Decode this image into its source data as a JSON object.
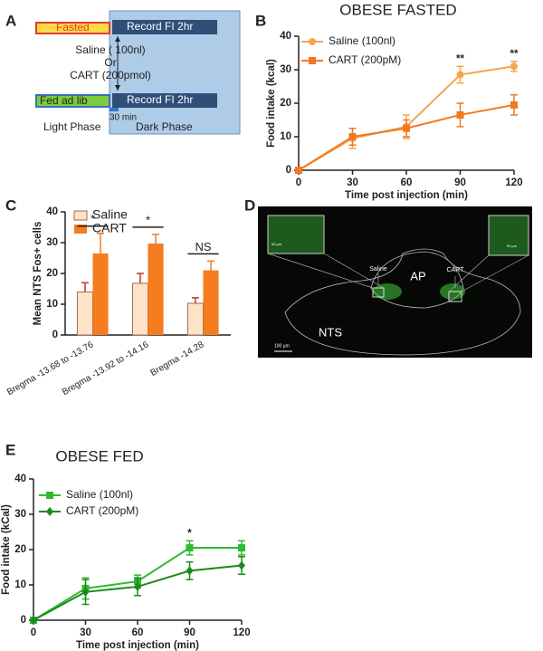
{
  "panel_labels": [
    "A",
    "B",
    "C",
    "D",
    "E"
  ],
  "diagram": {
    "fasted": "Fasted",
    "record_1": "Record FI 2hr",
    "saline": "Saline ( 100nl)",
    "or": "Or",
    "cart": "CART (200pmol)",
    "fed": "Fed ad lib",
    "record_2": "Record FI 2hr",
    "delay": "30 min",
    "light": "Light Phase",
    "dark": "Dark Phase"
  },
  "micrograph": {
    "saline": "Saline",
    "cart": "CART",
    "ap": "AP",
    "nts": "NTS",
    "scale": "100 µm",
    "inset_scale_1": "50 µm",
    "inset_scale_2": "50 µm"
  },
  "chart_data": [
    {
      "type": "line",
      "title": "OBESE FASTED",
      "x_label": "Time post injection (min)",
      "y_label": "Food intake (kcal)",
      "x": [
        0,
        30,
        60,
        90,
        120
      ],
      "xlim": [
        0,
        120
      ],
      "xticks": [
        0,
        30,
        60,
        90,
        120
      ],
      "ylim": [
        0,
        40
      ],
      "yticks": [
        0,
        10,
        20,
        30,
        40
      ],
      "series": [
        {
          "name": "Saline (100nl)",
          "color": "#f5a54e",
          "marker": "circle",
          "values": [
            0,
            9.5,
            13,
            28.5,
            31
          ],
          "errors": [
            0,
            3,
            3.5,
            2.5,
            1.5
          ]
        },
        {
          "name": "CART (200pM)",
          "color": "#f07a22",
          "marker": "square",
          "values": [
            0,
            10,
            12.5,
            16.5,
            19.5
          ],
          "errors": [
            0,
            2.5,
            2.5,
            3.5,
            3
          ]
        }
      ],
      "annotations": [
        {
          "text": "**",
          "x": 90
        },
        {
          "text": "**",
          "x": 120
        }
      ]
    },
    {
      "type": "bar",
      "y_label": "Mean NTS Fos+ cells",
      "categories": [
        "Bregma -13.68 to -13.76",
        "Bregma -13.92 to -14.16",
        "Bregma -14.28"
      ],
      "ylim": [
        0,
        40
      ],
      "yticks": [
        0,
        10,
        20,
        30,
        40
      ],
      "series": [
        {
          "name": "Saline",
          "color": "#fde3c8",
          "values": [
            14,
            16.8,
            10.3
          ],
          "errors": [
            3,
            3.2,
            1.8
          ]
        },
        {
          "name": "CART",
          "color": "#f57c1f",
          "values": [
            26.5,
            29.7,
            21
          ],
          "errors": [
            6.5,
            3,
            3
          ]
        }
      ],
      "annotations": [
        {
          "text": "*",
          "category": 0
        },
        {
          "text": "*",
          "category": 1
        },
        {
          "text": "NS",
          "category": 2
        }
      ]
    },
    {
      "type": "line",
      "title": "OBESE FED",
      "x_label": "Time post injection (min)",
      "y_label": "Food intake (kCal)",
      "x": [
        0,
        30,
        60,
        90,
        120
      ],
      "xlim": [
        0,
        120
      ],
      "xticks": [
        0,
        30,
        60,
        90,
        120
      ],
      "ylim": [
        0,
        40
      ],
      "yticks": [
        0,
        10,
        20,
        30,
        40
      ],
      "series": [
        {
          "name": "Saline (100nl)",
          "color": "#2fba2f",
          "marker": "square",
          "values": [
            0,
            9,
            11,
            20.5,
            20.5
          ],
          "errors": [
            0,
            3,
            1.8,
            2,
            2
          ]
        },
        {
          "name": "CART (200pM)",
          "color": "#1b8a1b",
          "marker": "diamond",
          "values": [
            0,
            8,
            9.5,
            14,
            15.5
          ],
          "errors": [
            0,
            3.5,
            2.5,
            2.5,
            2.5
          ]
        }
      ],
      "annotations": [
        {
          "text": "*",
          "x": 90
        }
      ]
    }
  ]
}
